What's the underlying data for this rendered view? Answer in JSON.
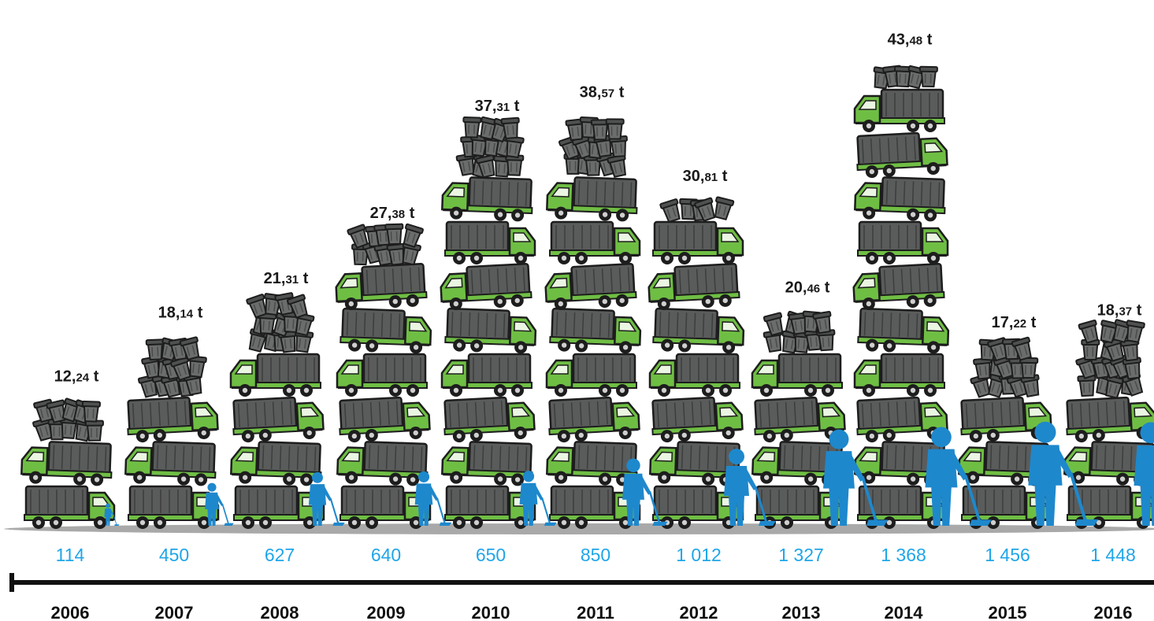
{
  "colors": {
    "truck_green": "#6fbe44",
    "truck_body": "#5a5c5c",
    "bin": "#6b6d6d",
    "worker_blue": "#1e88cc",
    "workers_text": "#1fa6e8",
    "timeline": "#111111"
  },
  "icons": [
    "dump-truck-icon",
    "waste-bin-icon",
    "sanitation-worker-icon"
  ],
  "chart_data": {
    "type": "bar",
    "categories": [
      "2006",
      "2007",
      "2008",
      "2009",
      "2010",
      "2011",
      "2012",
      "2013",
      "2014",
      "2015",
      "2016"
    ],
    "series": [
      {
        "values": [
          12.24,
          18.14,
          21.31,
          27.38,
          37.31,
          38.57,
          30.81,
          20.46,
          43.48,
          17.22,
          18.37
        ],
        "labels": [
          {
            "int": "12,",
            "dec": "24",
            "unit": " t"
          },
          {
            "int": "18,",
            "dec": "14",
            "unit": " t"
          },
          {
            "int": "21,",
            "dec": "31",
            "unit": " t"
          },
          {
            "int": "27,",
            "dec": "38",
            "unit": " t"
          },
          {
            "int": "37,",
            "dec": "31",
            "unit": " t"
          },
          {
            "int": "38,",
            "dec": "57",
            "unit": " t"
          },
          {
            "int": "30,",
            "dec": "81",
            "unit": " t"
          },
          {
            "int": "20,",
            "dec": "46",
            "unit": " t"
          },
          {
            "int": "43,",
            "dec": "48",
            "unit": " t"
          },
          {
            "int": "17,",
            "dec": "22",
            "unit": " t"
          },
          {
            "int": "18,",
            "dec": "37",
            "unit": " t"
          }
        ]
      },
      {
        "values": [
          114,
          450,
          627,
          640,
          650,
          850,
          1012,
          1327,
          1368,
          1456,
          1448
        ],
        "labels": [
          "114",
          "450",
          "627",
          "640",
          "650",
          "850",
          "1 012",
          "1 327",
          "1 368",
          "1 456",
          "1 448"
        ]
      }
    ]
  }
}
